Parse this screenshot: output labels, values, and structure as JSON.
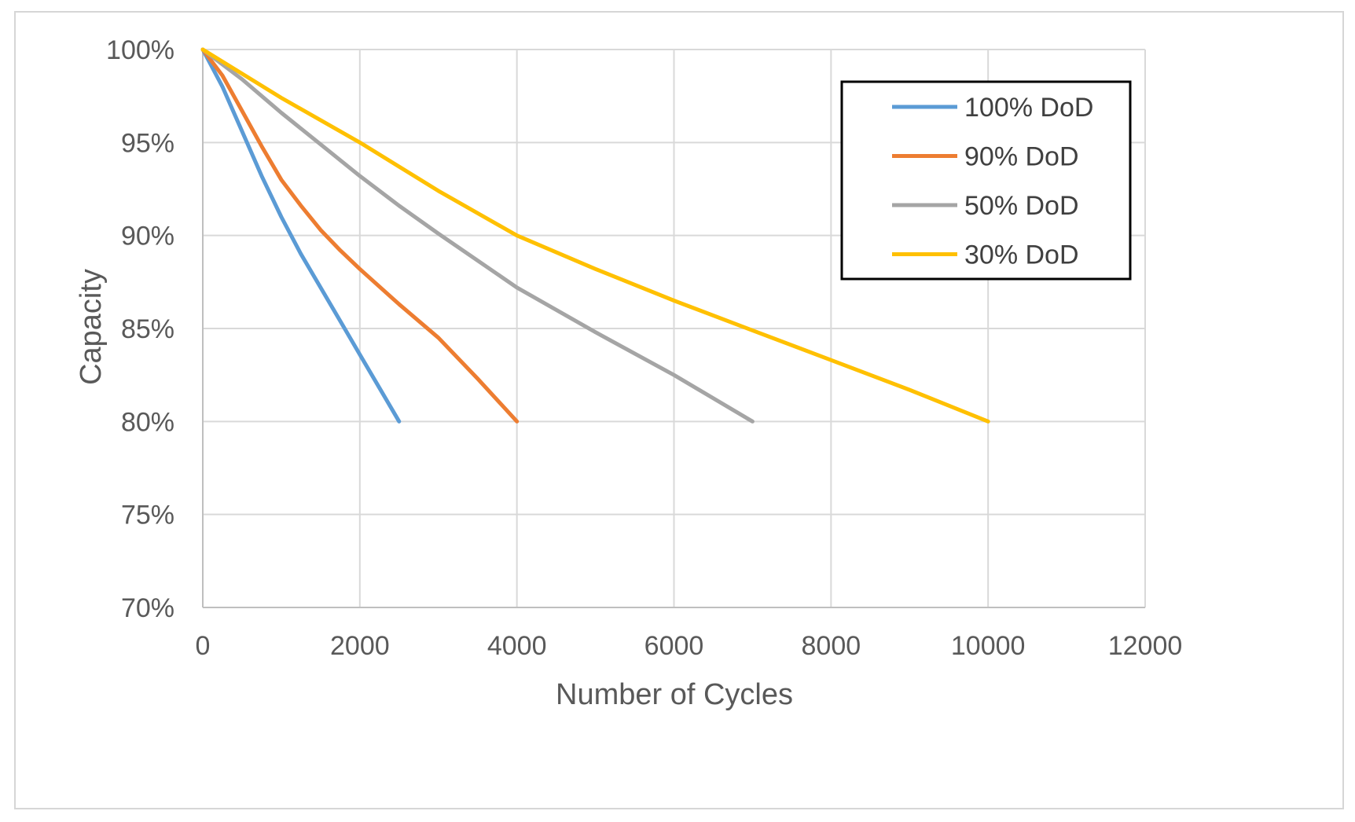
{
  "chart_data": {
    "type": "line",
    "title": "",
    "xlabel": "Number of Cycles",
    "ylabel": "Capacity",
    "xlim": [
      0,
      12000
    ],
    "ylim": [
      70,
      100
    ],
    "x_ticks": [
      0,
      2000,
      4000,
      6000,
      8000,
      10000,
      12000
    ],
    "x_tick_labels": [
      "0",
      "2000",
      "4000",
      "6000",
      "8000",
      "10000",
      "12000"
    ],
    "y_ticks": [
      70,
      75,
      80,
      85,
      90,
      95,
      100
    ],
    "y_tick_labels": [
      "70%",
      "75%",
      "80%",
      "85%",
      "90%",
      "95%",
      "100%"
    ],
    "grid": true,
    "legend_position": "top-right",
    "series": [
      {
        "name": "100% DoD",
        "color": "#5b9bd5",
        "points": [
          [
            0,
            100
          ],
          [
            250,
            98
          ],
          [
            500,
            95.6
          ],
          [
            750,
            93.2
          ],
          [
            1000,
            91
          ],
          [
            1250,
            89
          ],
          [
            1500,
            87.2
          ],
          [
            1750,
            85.4
          ],
          [
            2000,
            83.6
          ],
          [
            2250,
            81.8
          ],
          [
            2500,
            80
          ]
        ]
      },
      {
        "name": "90% DoD",
        "color": "#ed7d31",
        "points": [
          [
            0,
            100
          ],
          [
            250,
            98.6
          ],
          [
            500,
            96.7
          ],
          [
            750,
            94.8
          ],
          [
            1000,
            93
          ],
          [
            1250,
            91.6
          ],
          [
            1500,
            90.3
          ],
          [
            1750,
            89.2
          ],
          [
            2000,
            88.2
          ],
          [
            2500,
            86.3
          ],
          [
            3000,
            84.5
          ],
          [
            3500,
            82.3
          ],
          [
            4000,
            80
          ]
        ]
      },
      {
        "name": "50% DoD",
        "color": "#a5a5a5",
        "points": [
          [
            0,
            100
          ],
          [
            500,
            98.4
          ],
          [
            1000,
            96.6
          ],
          [
            1500,
            94.9
          ],
          [
            2000,
            93.2
          ],
          [
            2500,
            91.6
          ],
          [
            3000,
            90.1
          ],
          [
            4000,
            87.2
          ],
          [
            5000,
            84.8
          ],
          [
            6000,
            82.5
          ],
          [
            7000,
            80
          ]
        ]
      },
      {
        "name": "30% DoD",
        "color": "#ffc000",
        "points": [
          [
            0,
            100
          ],
          [
            1000,
            97.4
          ],
          [
            2000,
            95
          ],
          [
            3000,
            92.4
          ],
          [
            4000,
            90
          ],
          [
            5000,
            88.2
          ],
          [
            6000,
            86.5
          ],
          [
            7000,
            84.9
          ],
          [
            8000,
            83.3
          ],
          [
            9000,
            81.7
          ],
          [
            10000,
            80
          ]
        ]
      }
    ]
  }
}
